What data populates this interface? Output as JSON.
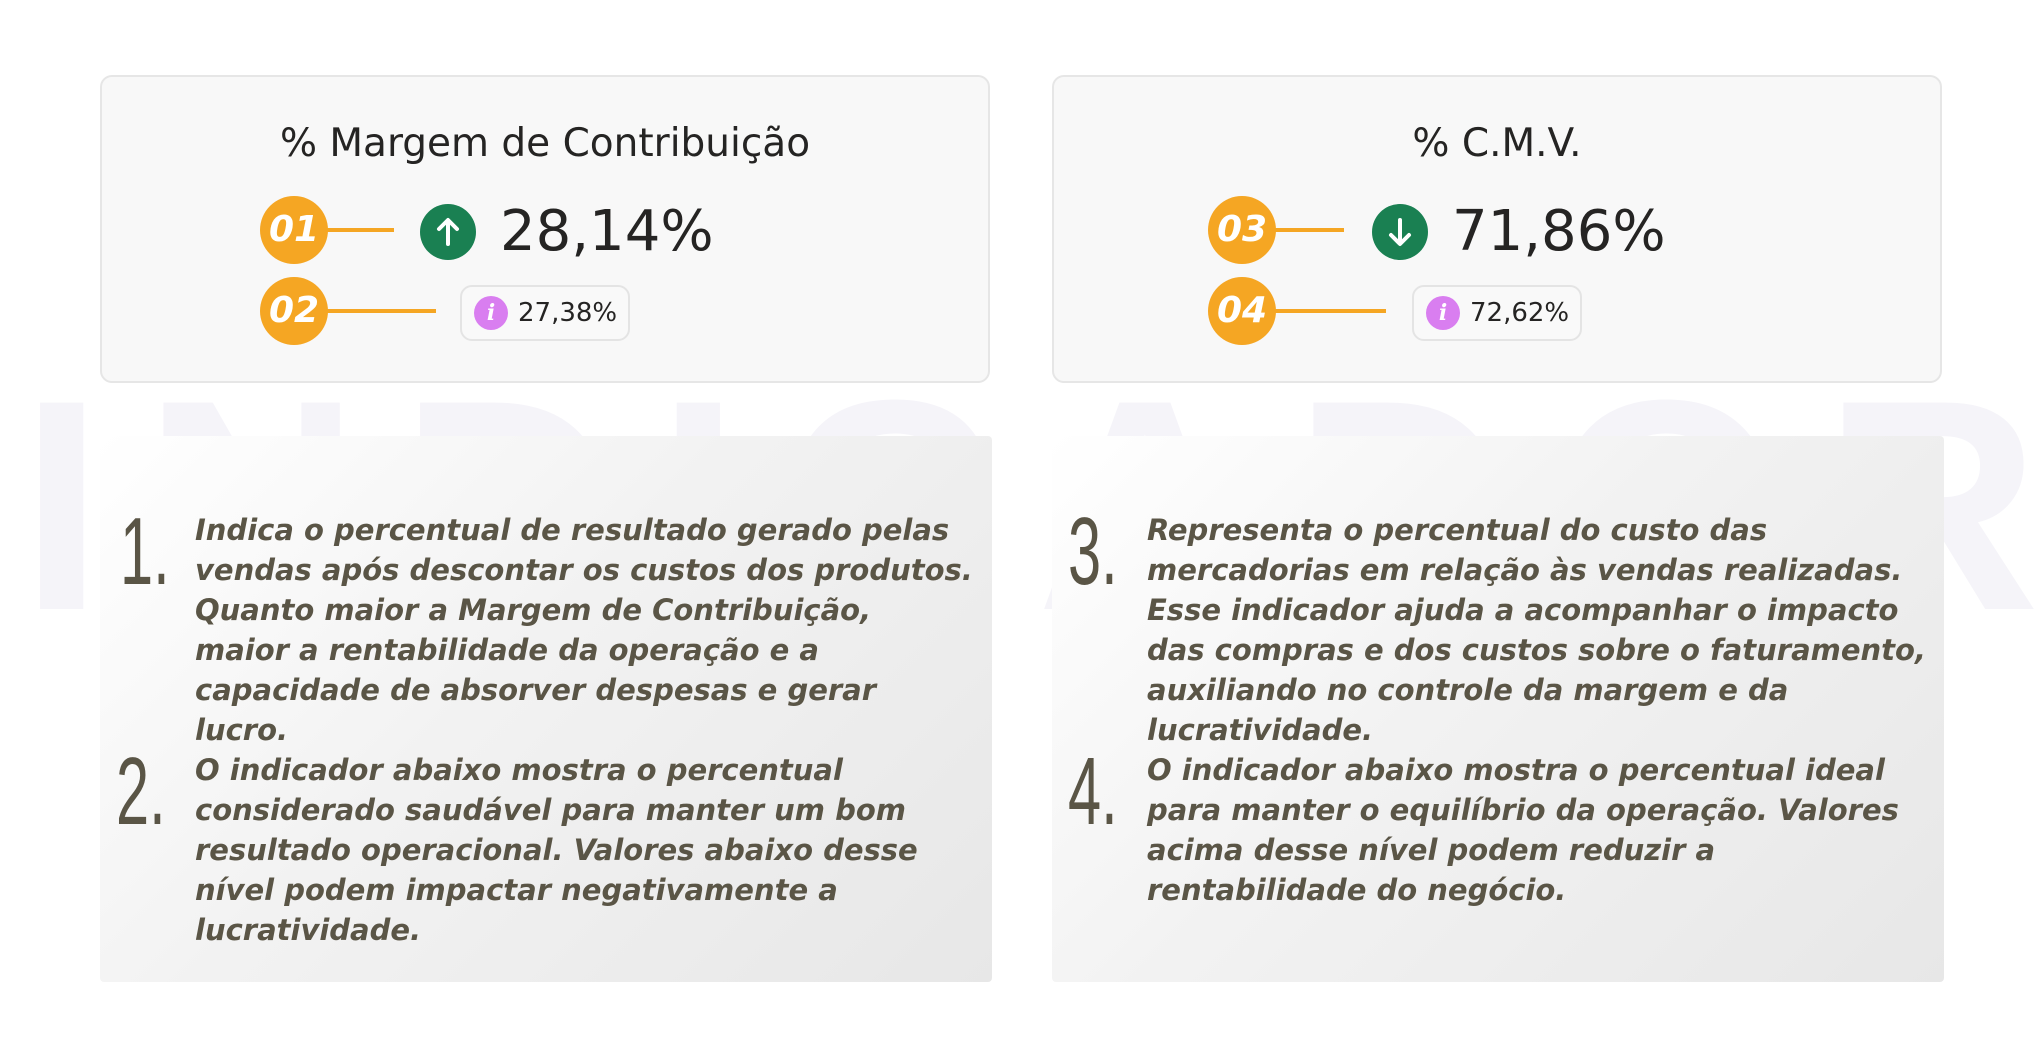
{
  "watermark": "INDICADORES",
  "cards": [
    {
      "title": "% Margem de Contribuição",
      "marker_value": "01",
      "marker_target": "02",
      "trend": "up",
      "trend_icon": "arrow-up-icon",
      "value": "28,14%",
      "target": "27,38%"
    },
    {
      "title": "% C.M.V.",
      "marker_value": "03",
      "marker_target": "04",
      "trend": "down",
      "trend_icon": "arrow-down-icon",
      "value": "71,86%",
      "target": "72,62%"
    }
  ],
  "descriptions": [
    {
      "items": [
        {
          "num": "1.",
          "text": "Indica o percentual de resultado gerado pelas vendas após descontar os custos dos produtos. Quanto maior a Margem de Contribuição, maior a rentabilidade da operação e a capacidade de absorver despesas e gerar lucro."
        },
        {
          "num": "2.",
          "text": "O indicador abaixo mostra o percentual considerado saudável para manter um bom resultado operacional. Valores abaixo desse nível podem impactar negativamente a lucratividade."
        }
      ]
    },
    {
      "items": [
        {
          "num": "3.",
          "text": "Representa o percentual do custo das mercadorias em relação às vendas realizadas. Esse indicador ajuda a acompanhar o impacto das compras e dos custos sobre o faturamento, auxiliando no controle da margem e da lucratividade."
        },
        {
          "num": "4.",
          "text": "O indicador abaixo mostra o percentual ideal para manter o equilíbrio da operação. Valores acima desse nível podem reduzir a rentabilidade do negócio."
        }
      ]
    }
  ],
  "colors": {
    "marker": "#f5a623",
    "trend_good": "#1a8052",
    "info": "#d97ef0",
    "text_dark": "#252423",
    "text_desc": "#5a5546"
  }
}
